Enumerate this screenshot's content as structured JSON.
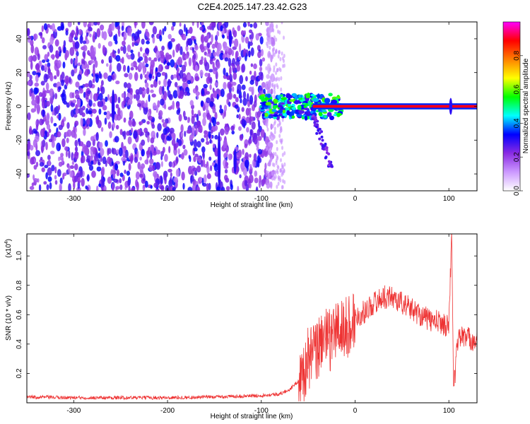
{
  "title": "C2E4.2025.147.23.42.G23",
  "chart_data": [
    {
      "type": "heatmap",
      "xlabel": "Height of straight line (km)",
      "ylabel": "Frequency (Hz)",
      "xlim": [
        -350,
        130
      ],
      "ylim": [
        -50,
        50
      ],
      "xticks": [
        -300,
        -200,
        -100,
        0,
        100
      ],
      "yticks": [
        -40,
        -20,
        0,
        20,
        40
      ],
      "colorbar": {
        "label": "Normalized spectral amplitude",
        "range": [
          0,
          1
        ],
        "ticks": [
          "0.0",
          "0.2",
          "0.4",
          "0.6",
          "0.8"
        ],
        "colors": [
          "#ffffff",
          "#cc99ff",
          "#8a2be2",
          "#0000ff",
          "#00ffff",
          "#00ff00",
          "#ffff00",
          "#ff8000",
          "#ff0000",
          "#ff00ff"
        ]
      },
      "features": {
        "carrier_line": {
          "frequency": 0,
          "from": -45,
          "to": 130,
          "level": 0.9
        },
        "noise_region": {
          "from": -350,
          "to": -95,
          "level": 0.3
        },
        "chirp": {
          "start_x": -45,
          "end_x": -25,
          "end_frequency": -37
        }
      }
    },
    {
      "type": "line",
      "xlabel": "Height of straight line (km)",
      "ylabel": "SNR (10 * v/v)",
      "yscale_label": "(x10",
      "yscale_exp": "4",
      "xlim": [
        -350,
        130
      ],
      "ylim": [
        0,
        1.15
      ],
      "xticks": [
        -300,
        -200,
        -100,
        0,
        100
      ],
      "yticks": [
        0.2,
        0.4,
        0.6,
        0.8,
        1.0
      ],
      "ytick_labels": [
        "0.2",
        "0.4",
        "0.6",
        "0.8",
        "1.0"
      ],
      "color": "#ee3333",
      "series": [
        {
          "x": [
            -350,
            -300,
            -250,
            -200,
            -150,
            -100,
            -80,
            -70,
            -60,
            -55,
            -50,
            -40,
            -33,
            -30,
            -20,
            -10,
            0,
            10,
            20,
            30,
            40,
            50,
            60,
            70,
            80,
            90,
            100,
            103,
            105,
            110,
            120,
            130
          ],
          "y": [
            0.04,
            0.035,
            0.035,
            0.035,
            0.04,
            0.05,
            0.06,
            0.09,
            0.15,
            0.2,
            0.3,
            0.35,
            0.5,
            0.4,
            0.5,
            0.5,
            0.58,
            0.62,
            0.68,
            0.72,
            0.72,
            0.68,
            0.64,
            0.6,
            0.56,
            0.55,
            0.52,
            1.18,
            0.08,
            0.46,
            0.44,
            0.42
          ]
        }
      ]
    }
  ]
}
